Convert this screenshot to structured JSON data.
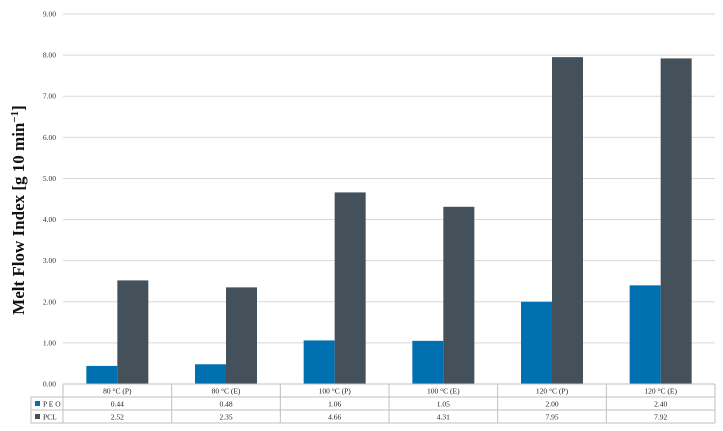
{
  "chart_data": {
    "type": "bar",
    "title": "",
    "ylabel": "Melt Flow Index [g 10 min",
    "ylabel_sup": "−1",
    "ylabel_close": "]",
    "ylim": [
      0,
      9
    ],
    "yticks": [
      "0.00",
      "1.00",
      "2.00",
      "3.00",
      "4.00",
      "5.00",
      "6.00",
      "7.00",
      "8.00",
      "9.00"
    ],
    "grid": true,
    "categories": [
      "80 °C (P)",
      "80 °C (E)",
      "100 °C (P)",
      "100 °C (E)",
      "120 °C (P)",
      "120 °C (E)"
    ],
    "series": [
      {
        "name": "P E O",
        "color": "#0070b0",
        "values": [
          0.44,
          0.48,
          1.06,
          1.05,
          2.0,
          2.4
        ],
        "labels": [
          "0.44",
          "0.48",
          "1.06",
          "1.05",
          "2.00",
          "2.40"
        ]
      },
      {
        "name": "PCL",
        "color": "#44515a",
        "values": [
          2.52,
          2.35,
          4.66,
          4.31,
          7.95,
          7.92
        ],
        "labels": [
          "2.52",
          "2.35",
          "4.66",
          "4.31",
          "7.95",
          "7.92"
        ]
      }
    ],
    "legend": "data-table"
  }
}
